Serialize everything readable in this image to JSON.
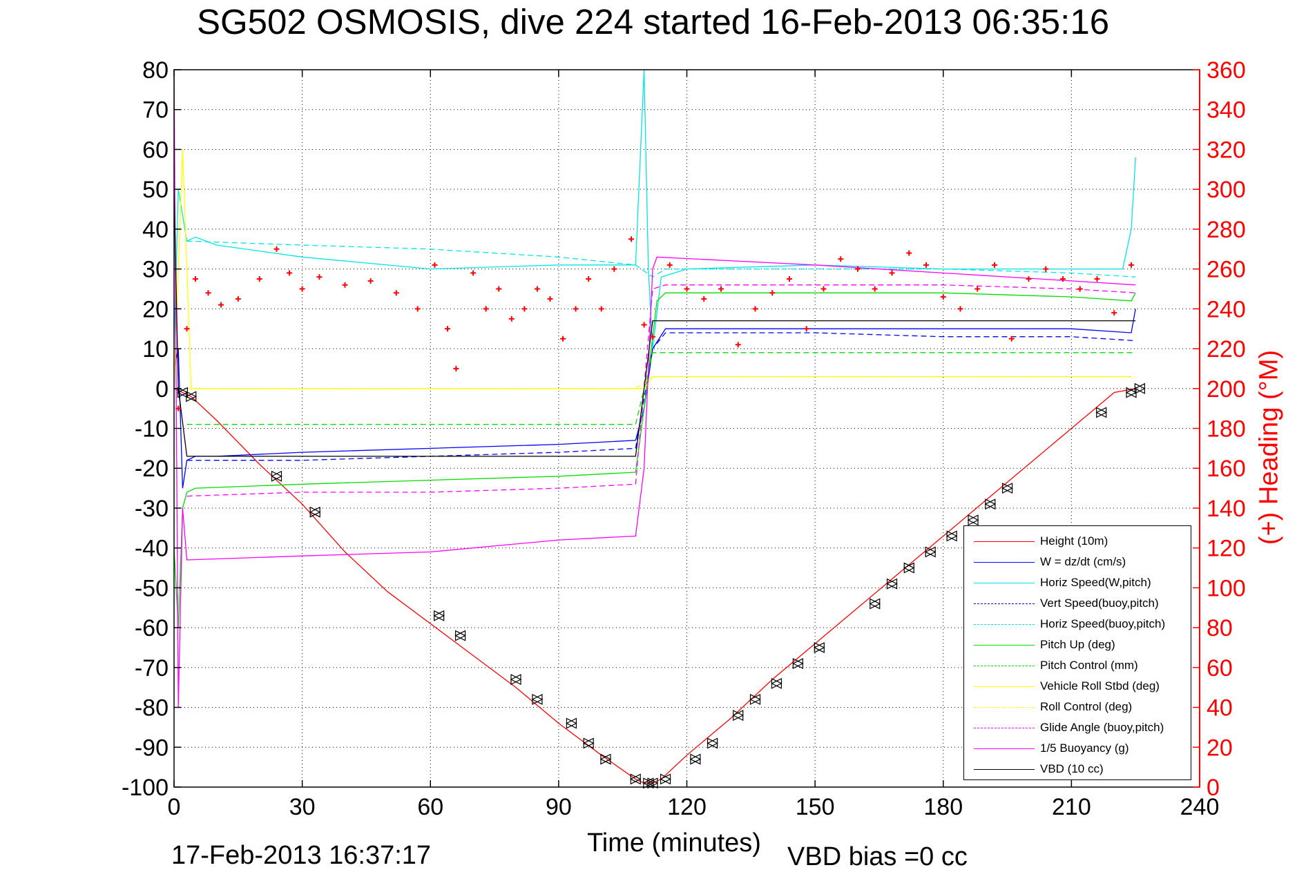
{
  "title": "SG502 OSMOSIS, dive 224 started 16-Feb-2013 06:35:16",
  "footer_date": "17-Feb-2013 16:37:17",
  "footer_vbd": "VBD bias =0 cc",
  "chart_data": {
    "type": "line",
    "xlabel": "Time (minutes)",
    "ylabel": "",
    "y2label": "(+) Heading (°M)",
    "xlim": [
      0,
      240
    ],
    "ylim": [
      -100,
      80
    ],
    "y2lim": [
      0,
      360
    ],
    "x_ticks": [
      "0",
      "30",
      "60",
      "90",
      "120",
      "150",
      "180",
      "210",
      "240"
    ],
    "y_ticks": [
      "80",
      "70",
      "60",
      "50",
      "40",
      "30",
      "20",
      "10",
      "0",
      "-10",
      "-20",
      "-30",
      "-40",
      "-50",
      "-60",
      "-70",
      "-80",
      "-90",
      "-100"
    ],
    "y2_ticks": [
      "360",
      "340",
      "320",
      "300",
      "280",
      "260",
      "240",
      "220",
      "200",
      "180",
      "160",
      "140",
      "120",
      "100",
      "80",
      "60",
      "40",
      "20",
      "0"
    ],
    "grid": true,
    "legend_position": "bottom-right",
    "series": [
      {
        "name": "Height (10m)",
        "color": "#ff0000",
        "style": "solid",
        "x": [
          0,
          2,
          4,
          10,
          20,
          30,
          40,
          50,
          60,
          70,
          80,
          90,
          100,
          108,
          110,
          112,
          114,
          120,
          130,
          140,
          150,
          160,
          170,
          180,
          190,
          200,
          210,
          220,
          225
        ],
        "y": [
          0,
          -1,
          -2,
          -8,
          -19,
          -29,
          -41,
          -51,
          -59,
          -67,
          -75,
          -84,
          -92,
          -98,
          -99,
          -99,
          -98,
          -92,
          -83,
          -73,
          -64,
          -55,
          -46,
          -37,
          -28,
          -19,
          -10,
          -1,
          0
        ]
      },
      {
        "name": "W = dz/dt (cm/s)",
        "color": "#0000ff",
        "style": "solid",
        "x": [
          0,
          1,
          2,
          3,
          5,
          10,
          30,
          60,
          90,
          108,
          110,
          112,
          115,
          120,
          150,
          180,
          210,
          224,
          225
        ],
        "y": [
          5,
          10,
          -25,
          -18,
          -17,
          -17,
          -16,
          -15,
          -14,
          -13,
          -5,
          10,
          15,
          15,
          15,
          15,
          15,
          14,
          20
        ]
      },
      {
        "name": "Horiz Speed(W,pitch)",
        "color": "#00e5e5",
        "style": "solid",
        "x": [
          0,
          1,
          3,
          5,
          10,
          30,
          60,
          90,
          108,
          110,
          111,
          112,
          114,
          120,
          150,
          180,
          210,
          222,
          224,
          225
        ],
        "y": [
          10,
          50,
          37,
          38,
          36,
          33,
          30,
          31,
          31,
          80,
          30,
          10,
          28,
          30,
          31,
          30,
          30,
          30,
          40,
          58
        ]
      },
      {
        "name": "Vert Speed(buoy,pitch)",
        "color": "#0000ff",
        "style": "dashed",
        "x": [
          3,
          30,
          60,
          90,
          108,
          112,
          115,
          150,
          180,
          210,
          225
        ],
        "y": [
          -18,
          -18,
          -17,
          -16,
          -15,
          10,
          14,
          14,
          13,
          13,
          12
        ]
      },
      {
        "name": "Horiz Speed(buoy,pitch)",
        "color": "#00e5e5",
        "style": "dashed",
        "x": [
          3,
          30,
          60,
          90,
          108,
          112,
          115,
          150,
          180,
          210,
          225
        ],
        "y": [
          37,
          36,
          35,
          33,
          31,
          28,
          30,
          30,
          30,
          29,
          28
        ]
      },
      {
        "name": "Pitch Up (deg)",
        "color": "#00dd00",
        "style": "solid",
        "x": [
          0,
          1,
          2,
          3,
          5,
          30,
          60,
          90,
          108,
          110,
          113,
          115,
          150,
          180,
          210,
          224,
          225
        ],
        "y": [
          -40,
          -60,
          -30,
          -26,
          -25,
          -24,
          -23,
          -22,
          -21,
          -5,
          22,
          24,
          24,
          24,
          23,
          22,
          24
        ]
      },
      {
        "name": "Pitch Control (mm)",
        "color": "#00dd00",
        "style": "dashed",
        "x": [
          3,
          108,
          112,
          225
        ],
        "y": [
          -9,
          -9,
          9,
          9
        ]
      },
      {
        "name": "Vehicle Roll Stbd (deg)",
        "color": "#ffff00",
        "style": "solid",
        "x": [
          0,
          2,
          4,
          30,
          60,
          90,
          108,
          110,
          112,
          115,
          150,
          180,
          210,
          224
        ],
        "y": [
          0,
          60,
          0,
          0,
          0,
          0,
          0,
          0,
          3,
          3,
          3,
          3,
          3,
          3
        ]
      },
      {
        "name": "Roll Control (deg)",
        "color": "#ffff00",
        "style": "dashed",
        "x": [
          3,
          108,
          112,
          225
        ],
        "y": [
          0,
          0,
          3,
          3
        ]
      },
      {
        "name": "Glide Angle (buoy,pitch)",
        "color": "#ff00ff",
        "style": "dashed",
        "x": [
          3,
          30,
          60,
          90,
          108,
          112,
          115,
          150,
          180,
          210,
          225
        ],
        "y": [
          -27,
          -26,
          -26,
          -25,
          -24,
          25,
          26,
          26,
          26,
          25,
          24
        ]
      },
      {
        "name": "1/5 Buoyancy (g)",
        "color": "#ff00ff",
        "style": "solid",
        "x": [
          0,
          1,
          2,
          3,
          30,
          60,
          90,
          108,
          110,
          112,
          113,
          150,
          180,
          210,
          225
        ],
        "y": [
          80,
          -80,
          -30,
          -43,
          -42,
          -41,
          -38,
          -37,
          -20,
          30,
          33,
          31,
          29,
          27,
          26
        ]
      },
      {
        "name": "VBD (10 cc)",
        "color": "#000000",
        "style": "solid",
        "x": [
          0,
          1,
          3,
          108,
          112,
          225
        ],
        "y": [
          50,
          0,
          -17,
          -17,
          17,
          17
        ]
      }
    ],
    "heading": {
      "name": "Heading",
      "color": "#ff0000",
      "marker": "+",
      "axis": "right",
      "x": [
        1,
        3,
        5,
        8,
        11,
        15,
        20,
        24,
        27,
        30,
        34,
        40,
        46,
        52,
        57,
        61,
        64,
        66,
        70,
        73,
        76,
        79,
        82,
        85,
        88,
        91,
        94,
        97,
        100,
        103,
        107,
        110,
        112,
        116,
        120,
        124,
        128,
        132,
        136,
        140,
        144,
        148,
        152,
        156,
        160,
        164,
        168,
        172,
        176,
        180,
        184,
        188,
        192,
        196,
        200,
        204,
        208,
        212,
        216,
        220,
        224
      ],
      "y": [
        190,
        230,
        255,
        248,
        242,
        245,
        255,
        270,
        258,
        250,
        256,
        252,
        254,
        248,
        240,
        262,
        230,
        210,
        258,
        240,
        250,
        235,
        240,
        250,
        245,
        225,
        240,
        255,
        240,
        260,
        275,
        232,
        226,
        262,
        250,
        245,
        250,
        222,
        240,
        248,
        255,
        230,
        250,
        265,
        260,
        250,
        258,
        268,
        262,
        246,
        240,
        250,
        262,
        225,
        255,
        260,
        255,
        250,
        255,
        238,
        262
      ]
    },
    "dive_markers": {
      "name": "",
      "color": "#000000",
      "marker": "triangles",
      "x": [
        2,
        4,
        24,
        33,
        62,
        67,
        80,
        85,
        93,
        97,
        101,
        108,
        111,
        112,
        115,
        122,
        126,
        132,
        136,
        141,
        146,
        151,
        164,
        168,
        172,
        177,
        182,
        187,
        191,
        195,
        217,
        224,
        226
      ],
      "y": [
        -1,
        -2,
        -22,
        -31,
        -57,
        -62,
        -73,
        -78,
        -84,
        -89,
        -93,
        -98,
        -99,
        -99,
        -98,
        -93,
        -89,
        -82,
        -78,
        -74,
        -69,
        -65,
        -54,
        -49,
        -45,
        -41,
        -37,
        -33,
        -29,
        -25,
        -6,
        -1,
        0
      ]
    }
  },
  "legend": [
    {
      "label": "Height (10m)",
      "color": "#ff0000",
      "dash": "solid"
    },
    {
      "label": "W = dz/dt (cm/s)",
      "color": "#0000ff",
      "dash": "solid"
    },
    {
      "label": "Horiz Speed(W,pitch)",
      "color": "#00e5e5",
      "dash": "solid"
    },
    {
      "label": "Vert Speed(buoy,pitch)",
      "color": "#0000ff",
      "dash": "dashed"
    },
    {
      "label": "Horiz Speed(buoy,pitch)",
      "color": "#00e5e5",
      "dash": "dashed"
    },
    {
      "label": "Pitch Up (deg)",
      "color": "#00dd00",
      "dash": "solid"
    },
    {
      "label": "Pitch Control (mm)",
      "color": "#00dd00",
      "dash": "dashed"
    },
    {
      "label": "Vehicle Roll Stbd (deg)",
      "color": "#ffff00",
      "dash": "solid"
    },
    {
      "label": "Roll Control (deg)",
      "color": "#ffff00",
      "dash": "dashed"
    },
    {
      "label": "Glide Angle (buoy,pitch)",
      "color": "#ff00ff",
      "dash": "dashed"
    },
    {
      "label": "1/5 Buoyancy (g)",
      "color": "#ff00ff",
      "dash": "solid"
    },
    {
      "label": "VBD (10 cc)",
      "color": "#000000",
      "dash": "solid"
    }
  ]
}
